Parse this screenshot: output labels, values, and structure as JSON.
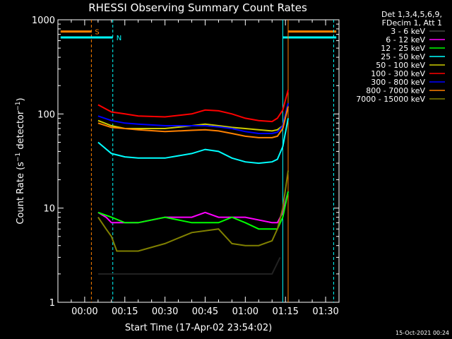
{
  "chart_data": {
    "type": "line",
    "title": "RHESSI Observing Summary Count Rates",
    "xlabel": "Start Time (17-Apr-02 23:54:02)",
    "ylabel": "Count Rate (s⁻¹ detector⁻¹)",
    "ylabel_parts": {
      "pre": "Count Rate (s",
      "sup1": "−1",
      "mid": " detector",
      "sup2": "−1",
      "post": ")"
    },
    "x_unit": "minutes after 00:00",
    "xlim": [
      -10,
      95
    ],
    "ylim": [
      1,
      1000
    ],
    "yscale": "log",
    "grid": false,
    "x_ticks": [
      {
        "label": "00:00",
        "value": 0
      },
      {
        "label": "00:15",
        "value": 15
      },
      {
        "label": "00:30",
        "value": 30
      },
      {
        "label": "00:45",
        "value": 45
      },
      {
        "label": "01:00",
        "value": 60
      },
      {
        "label": "01:15",
        "value": 75
      },
      {
        "label": "01:30",
        "value": 90
      }
    ],
    "y_ticks": [
      {
        "label": "1",
        "value": 1
      },
      {
        "label": "10",
        "value": 10
      },
      {
        "label": "100",
        "value": 100
      },
      {
        "label": "1000",
        "value": 1000
      }
    ],
    "legend_title": [
      "Det 1,3,4,5,6,9,",
      "FDecim 1, Att 1"
    ],
    "legend_position": "outside-right",
    "series": [
      {
        "name": "3 - 6 keV",
        "color": "#000000",
        "x": [
          5,
          10,
          20,
          30,
          40,
          50,
          60,
          70,
          73
        ],
        "y": [
          2,
          2,
          2,
          2,
          2,
          2,
          2,
          2,
          3
        ]
      },
      {
        "name": "6 - 12 keV",
        "color": "#ff00ff",
        "x": [
          5,
          8,
          10,
          20,
          30,
          40,
          45,
          50,
          60,
          70,
          72,
          74,
          76
        ],
        "y": [
          9,
          8,
          7,
          7,
          8,
          8,
          9,
          8,
          8,
          7,
          7,
          9,
          15
        ]
      },
      {
        "name": "12 - 25 keV",
        "color": "#00ff00",
        "x": [
          5,
          10,
          15,
          20,
          30,
          40,
          50,
          55,
          60,
          65,
          70,
          72,
          74,
          76
        ],
        "y": [
          9,
          8,
          7,
          7,
          8,
          7,
          7,
          8,
          7,
          6,
          6,
          6,
          8,
          15
        ]
      },
      {
        "name": "25 - 50 keV",
        "color": "#00ffff",
        "x": [
          5,
          10,
          15,
          20,
          30,
          40,
          45,
          50,
          55,
          60,
          65,
          70,
          72,
          74,
          76
        ],
        "y": [
          50,
          38,
          35,
          34,
          34,
          38,
          42,
          40,
          34,
          31,
          30,
          31,
          33,
          45,
          90
        ]
      },
      {
        "name": "50 - 100 keV",
        "color": "#cccc00",
        "x": [
          5,
          10,
          15,
          20,
          30,
          40,
          45,
          50,
          55,
          60,
          65,
          70,
          72,
          74,
          76
        ],
        "y": [
          85,
          75,
          70,
          70,
          70,
          75,
          78,
          75,
          72,
          70,
          68,
          66,
          68,
          75,
          130
        ]
      },
      {
        "name": "100 - 300 keV",
        "color": "#ff0000",
        "x": [
          5,
          10,
          15,
          20,
          30,
          40,
          45,
          50,
          55,
          60,
          65,
          70,
          72,
          74,
          76
        ],
        "y": [
          125,
          105,
          100,
          95,
          93,
          100,
          110,
          108,
          100,
          90,
          85,
          83,
          90,
          110,
          180
        ]
      },
      {
        "name": "300 - 800 keV",
        "color": "#0000ff",
        "x": [
          5,
          10,
          15,
          20,
          30,
          40,
          45,
          50,
          55,
          60,
          65,
          70,
          72,
          74,
          76
        ],
        "y": [
          95,
          85,
          80,
          78,
          75,
          75,
          75,
          73,
          70,
          65,
          62,
          62,
          64,
          75,
          130
        ]
      },
      {
        "name": "800 - 7000 keV",
        "color": "#ff8000",
        "x": [
          5,
          10,
          15,
          20,
          30,
          40,
          45,
          50,
          55,
          60,
          65,
          70,
          72,
          74,
          76
        ],
        "y": [
          80,
          72,
          70,
          68,
          65,
          67,
          68,
          66,
          62,
          58,
          56,
          56,
          58,
          70,
          120
        ]
      },
      {
        "name": "7000 - 15000 keV",
        "color": "#808000",
        "x": [
          5,
          8,
          10,
          12,
          15,
          20,
          30,
          40,
          50,
          55,
          60,
          65,
          70,
          72,
          74,
          76
        ],
        "y": [
          8,
          6,
          5,
          3.5,
          3.5,
          3.5,
          4.2,
          5.5,
          6,
          4.2,
          4,
          4,
          4.5,
          6,
          10,
          25
        ]
      }
    ],
    "markers": [
      {
        "label": "S",
        "color": "#ff8000",
        "x": 2.5,
        "style": "dashed",
        "bar_from": -9,
        "bar_to": 2.5,
        "bar_value": 750
      },
      {
        "label": "N",
        "color": "#00ffff",
        "x": 10.5,
        "style": "dashed",
        "bar_from": -9,
        "bar_to": 10.5,
        "bar_value": 650
      },
      {
        "label": "",
        "color": "#00ffff",
        "x": 74,
        "style": "solid",
        "bar_from": 74,
        "bar_to": 94,
        "bar_value": 650
      },
      {
        "label": "",
        "color": "#ff8000",
        "x": 76,
        "style": "solid",
        "bar_from": 76,
        "bar_to": 94,
        "bar_value": 750
      },
      {
        "label": "",
        "color": "#00ffff",
        "x": 93,
        "style": "dashed",
        "bar_from": 93,
        "bar_to": 93,
        "bar_value": 650
      }
    ]
  },
  "footer": {
    "timestamp": "15-Oct-2021 00:24"
  }
}
